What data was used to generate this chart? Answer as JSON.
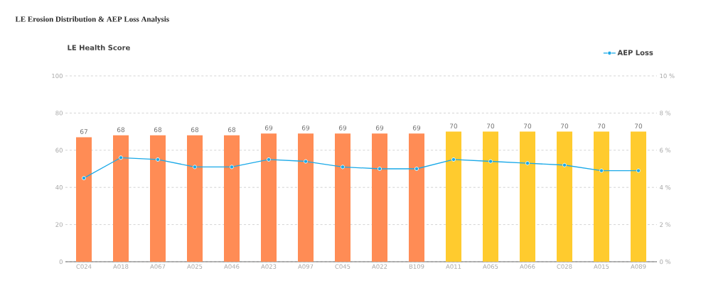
{
  "chart_data": {
    "type": "bar",
    "title": "LE Erosion Distribution & AEP Loss Analysis",
    "ylabel": "LE Health Score",
    "categories": [
      "C024",
      "A018",
      "A067",
      "A025",
      "A046",
      "A023",
      "A097",
      "C045",
      "A022",
      "B109",
      "A011",
      "A065",
      "A066",
      "C028",
      "A015",
      "A089"
    ],
    "series": [
      {
        "colors": [
          "#ff8c55",
          "#ff8c55",
          "#ff8c55",
          "#ff8c55",
          "#ff8c55",
          "#ff8c55",
          "#ff8c55",
          "#ff8c55",
          "#ff8c55",
          "#ff8c55",
          "#ffcb2e",
          "#ffcb2e",
          "#ffcb2e",
          "#ffcb2e",
          "#ffcb2e",
          "#ffcb2e"
        ],
        "values": [
          67,
          68,
          68,
          68,
          68,
          69,
          69,
          69,
          69,
          69,
          70,
          70,
          70,
          70,
          70,
          70
        ],
        "value_labels": [
          "67",
          "68",
          "68",
          "68",
          "68",
          "69",
          "69",
          "69",
          "69",
          "69",
          "70",
          "70",
          "70",
          "70",
          "70",
          "70"
        ]
      },
      {
        "type": "line",
        "name": "AEP Loss",
        "axis": "y2",
        "color": "#1aa9e8",
        "values": [
          4.5,
          5.6,
          5.5,
          5.1,
          5.1,
          5.5,
          5.4,
          5.1,
          5.0,
          5.0,
          5.5,
          5.4,
          5.3,
          5.2,
          4.9,
          4.9
        ]
      }
    ],
    "ylim": [
      0,
      100
    ],
    "yticks": [
      0,
      20,
      40,
      60,
      80,
      100
    ],
    "y2lim": [
      0,
      10
    ],
    "y2ticks": [
      {
        "value": 0,
        "label": "0 %"
      },
      {
        "value": 2,
        "label": "2 %"
      },
      {
        "value": 4,
        "label": "4 %"
      },
      {
        "value": 6,
        "label": "6 %"
      },
      {
        "value": 8,
        "label": "8 %"
      },
      {
        "value": 10,
        "label": "10 %"
      }
    ],
    "grid": "y",
    "legend": "top right",
    "marker": "circle"
  }
}
